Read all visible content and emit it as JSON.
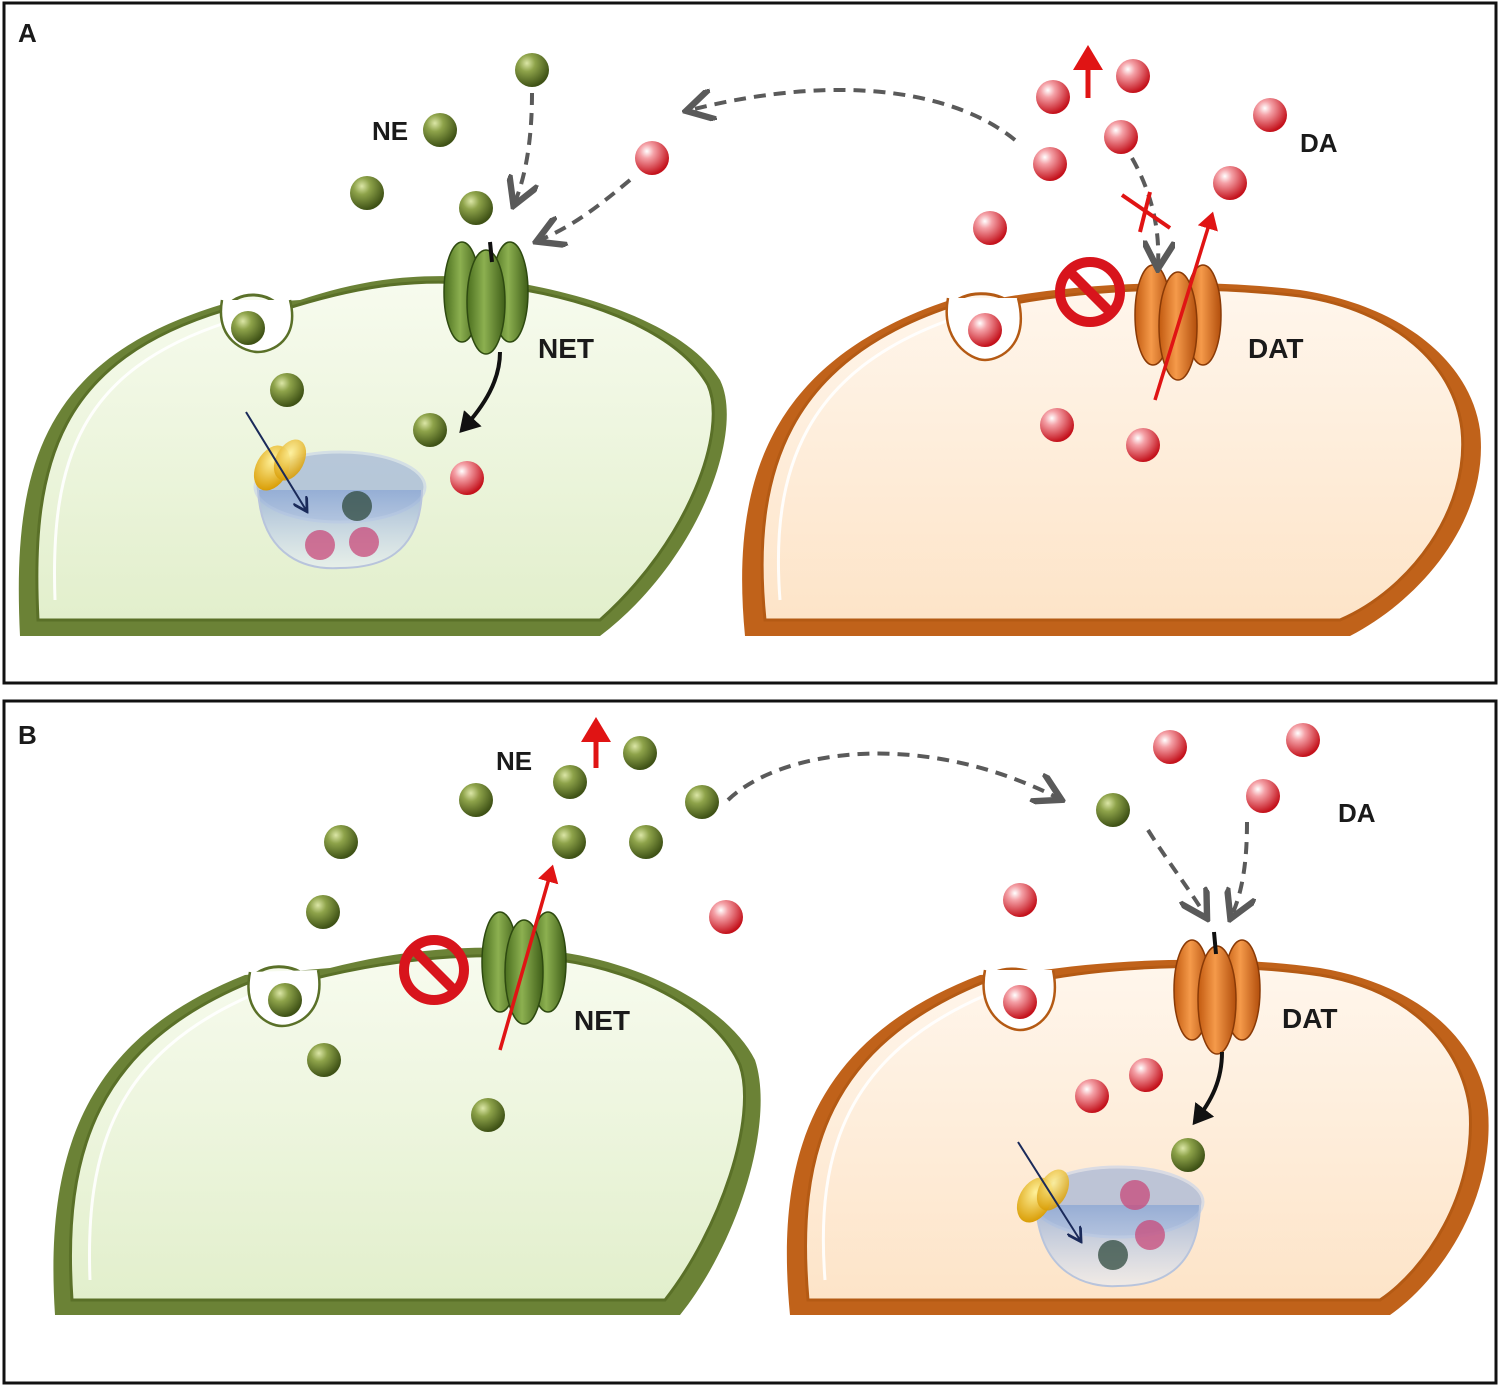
{
  "panels": [
    {
      "letter": "A",
      "labels": {
        "ne": "NE",
        "da": "DA",
        "net": "NET",
        "dat": "DAT"
      },
      "blocked_transporter": "DAT",
      "reverse_transport": "DAT"
    },
    {
      "letter": "B",
      "labels": {
        "ne": "NE",
        "da": "DA",
        "net": "NET",
        "dat": "DAT"
      },
      "blocked_transporter": "NET",
      "reverse_transport": "NET"
    }
  ],
  "colors": {
    "ne_molecule": "#6b7f2e",
    "da_molecule": "#d8202a",
    "noradrenergic_cell": "#6e8a3a",
    "dopaminergic_cell": "#c8661e",
    "net_transporter": "#5f8a2e",
    "dat_transporter": "#e8761e",
    "inhibition_symbol": "#d8141c",
    "increase_arrow": "#e01414",
    "diffusion_arrow": "#5a5a5a"
  },
  "icons": [
    "ne-molecule-icon",
    "da-molecule-icon",
    "inhibition-icon",
    "increase-arrow-icon",
    "block-cross-icon",
    "vesicle-icon",
    "vmat-icon"
  ]
}
